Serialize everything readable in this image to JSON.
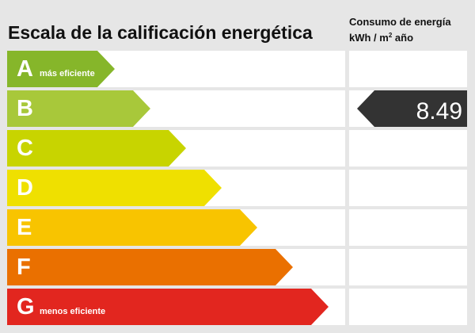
{
  "title": "Escala de la calificación energética",
  "column_header": {
    "line1": "Consumo de energía",
    "line2_prefix": "kWh / m",
    "line2_sup": "2",
    "line2_suffix": " año"
  },
  "rows": [
    {
      "letter": "A",
      "note": "más eficiente",
      "color": "#86b62a"
    },
    {
      "letter": "B",
      "note": "",
      "color": "#a8c83a"
    },
    {
      "letter": "C",
      "note": "",
      "color": "#c8d400"
    },
    {
      "letter": "D",
      "note": "",
      "color": "#efe000"
    },
    {
      "letter": "E",
      "note": "",
      "color": "#f8c400"
    },
    {
      "letter": "F",
      "note": "",
      "color": "#ea7000"
    },
    {
      "letter": "G",
      "note": "menos eficiente",
      "color": "#e2261f"
    }
  ],
  "rating": {
    "row": "B",
    "value": "8.49",
    "color": "#333333"
  }
}
